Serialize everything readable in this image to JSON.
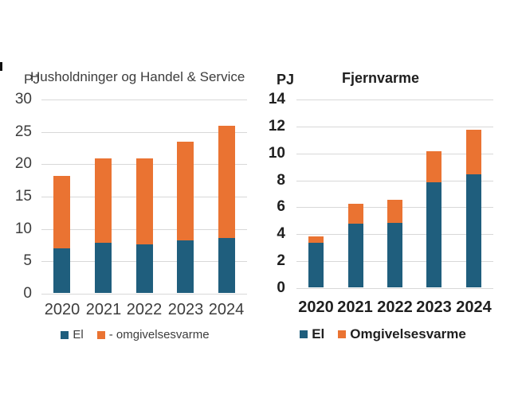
{
  "page": {
    "background": "#FFFFFF"
  },
  "theme": {
    "grid_color": "#D8D8D8",
    "axis_line_color": "#D8D8D8",
    "left_chart_text_color": "#3D3D3D",
    "right_chart_text_color": "#1F1F1F",
    "series_blue": "#1F5E7D",
    "series_orange": "#EA7332"
  },
  "chart_data": [
    {
      "type": "bar",
      "stacked": true,
      "title": "Husholdninger og Handel & Service",
      "unit_label": "PJ",
      "xlabel": "",
      "ylabel": "PJ",
      "categories": [
        "2020",
        "2021",
        "2022",
        "2023",
        "2024"
      ],
      "series": [
        {
          "name": "El",
          "color": "#1F5E7D",
          "values": [
            6.9,
            7.8,
            7.5,
            8.1,
            8.5
          ]
        },
        {
          "name": "- omgivelsesvarme",
          "color": "#EA7332",
          "values": [
            11.2,
            13.0,
            13.3,
            15.2,
            17.3
          ]
        }
      ],
      "totals": [
        18.1,
        20.8,
        20.8,
        23.3,
        25.8
      ],
      "ylim": [
        0,
        30
      ],
      "ytick_step": 5,
      "grid": true,
      "legend_position": "bottom"
    },
    {
      "type": "bar",
      "stacked": true,
      "title": "Fjernvarme",
      "unit_label": "PJ",
      "xlabel": "",
      "ylabel": "PJ",
      "categories": [
        "2020",
        "2021",
        "2022",
        "2023",
        "2024"
      ],
      "series": [
        {
          "name": "El",
          "color": "#1F5E7D",
          "values": [
            3.3,
            4.7,
            4.8,
            7.8,
            8.4
          ]
        },
        {
          "name": "Omgivelsesvarme",
          "color": "#EA7332",
          "values": [
            0.5,
            1.5,
            1.7,
            2.3,
            3.3
          ]
        }
      ],
      "totals": [
        3.8,
        6.2,
        6.5,
        10.1,
        11.7
      ],
      "ylim": [
        0,
        14
      ],
      "ytick_step": 2,
      "grid": true,
      "legend_position": "bottom"
    }
  ]
}
